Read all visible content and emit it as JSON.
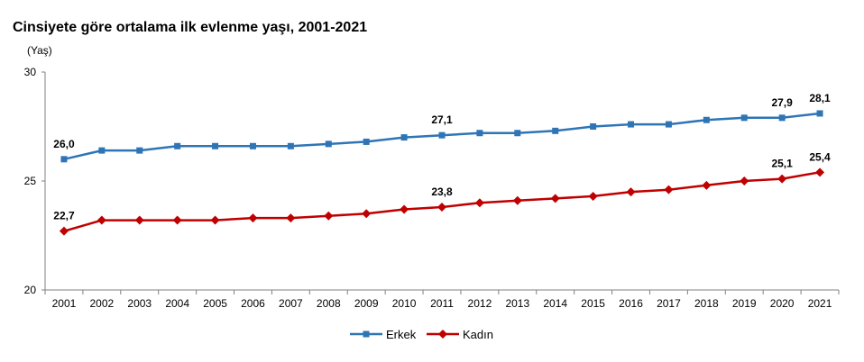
{
  "chart_data": {
    "type": "line",
    "title": "Cinsiyete göre ortalama ilk evlenme yaşı, 2001-2021",
    "ylabel": "(Yaş)",
    "xlabel": "",
    "ylim": [
      20,
      30
    ],
    "yticks": [
      "20",
      "25",
      "30"
    ],
    "categories": [
      "2001",
      "2002",
      "2003",
      "2004",
      "2005",
      "2006",
      "2007",
      "2008",
      "2009",
      "2010",
      "2011",
      "2012",
      "2013",
      "2014",
      "2015",
      "2016",
      "2017",
      "2018",
      "2019",
      "2020",
      "2021"
    ],
    "series": [
      {
        "name": "Erkek",
        "color": "#2E75B6",
        "marker": "square",
        "values": [
          26.0,
          26.4,
          26.4,
          26.6,
          26.6,
          26.6,
          26.6,
          26.7,
          26.8,
          27.0,
          27.1,
          27.2,
          27.2,
          27.3,
          27.5,
          27.6,
          27.6,
          27.8,
          27.9,
          27.9,
          28.1
        ],
        "labels": [
          {
            "index": 0,
            "text": "26,0"
          },
          {
            "index": 10,
            "text": "27,1"
          },
          {
            "index": 19,
            "text": "27,9"
          },
          {
            "index": 20,
            "text": "28,1"
          }
        ]
      },
      {
        "name": "Kadın",
        "color": "#C00000",
        "marker": "diamond",
        "values": [
          22.7,
          23.2,
          23.2,
          23.2,
          23.2,
          23.3,
          23.3,
          23.4,
          23.5,
          23.7,
          23.8,
          24.0,
          24.1,
          24.2,
          24.3,
          24.5,
          24.6,
          24.8,
          25.0,
          25.1,
          25.4
        ],
        "labels": [
          {
            "index": 0,
            "text": "22,7"
          },
          {
            "index": 10,
            "text": "23,8"
          },
          {
            "index": 19,
            "text": "25,1"
          },
          {
            "index": 20,
            "text": "25,4"
          }
        ]
      }
    ],
    "grid": false,
    "legend_position": "bottom-center"
  }
}
